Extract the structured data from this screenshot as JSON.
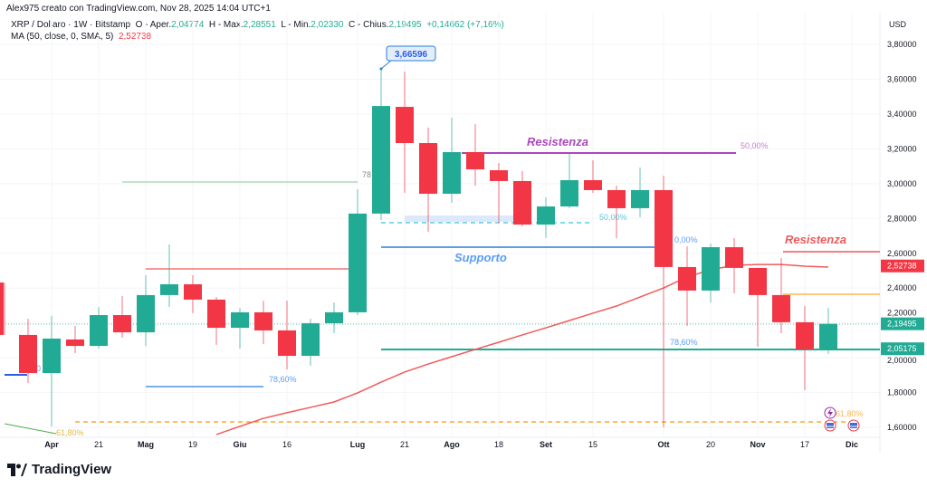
{
  "header": {
    "author_line": "Alex975 creato con TradingView.com, Nov 28, 2025 14:04 UTC+1",
    "symbol": "XRP / Dollaro · 1W · Bitstamp",
    "open_label": "O - Aper.",
    "open": "2,04774",
    "high_label": "H - Max.",
    "high": "2,28551",
    "low_label": "L - Min.",
    "low": "2,02330",
    "close_label": "C - Chius.",
    "close": "2,19495",
    "change": "+0,14662 (+7,16%)",
    "ma_label": "MA (50, close, 0, SMA, 5)",
    "ma_value": "2,52738"
  },
  "price_axis": {
    "currency": "USD",
    "ticks": [
      "3,80000",
      "3,60000",
      "3,40000",
      "3,20000",
      "3,00000",
      "2,80000",
      "2,60000",
      "2,40000",
      "2,20000",
      "2,00000",
      "1,80000",
      "1,60000"
    ],
    "tags": [
      {
        "text": "2,52738",
        "price": 2.52738,
        "color": "#f23645"
      },
      {
        "text": "2,19495",
        "price": 2.19495,
        "color": "#22ab94"
      },
      {
        "text": "2,05175",
        "price": 2.05175,
        "color": "#22ab94"
      }
    ]
  },
  "time_axis": {
    "labels": [
      {
        "t": "Apr",
        "i": 2
      },
      {
        "t": "21",
        "i": 4
      },
      {
        "t": "Mag",
        "i": 6
      },
      {
        "t": "19",
        "i": 8
      },
      {
        "t": "Giu",
        "i": 10
      },
      {
        "t": "16",
        "i": 12
      },
      {
        "t": "Lug",
        "i": 15
      },
      {
        "t": "21",
        "i": 17
      },
      {
        "t": "Ago",
        "i": 19
      },
      {
        "t": "18",
        "i": 21
      },
      {
        "t": "Set",
        "i": 23
      },
      {
        "t": "15",
        "i": 25
      },
      {
        "t": "Ott",
        "i": 28
      },
      {
        "t": "20",
        "i": 30
      },
      {
        "t": "Nov",
        "i": 32
      },
      {
        "t": "17",
        "i": 34
      },
      {
        "t": "Dic",
        "i": 36
      }
    ]
  },
  "colors": {
    "up": "#22ab94",
    "down": "#f23645",
    "ma": "#f05a5a",
    "purple": "#ab47bc",
    "blue": "#5b9cf6",
    "orange": "#ff9800"
  },
  "chart_data": {
    "type": "candlestick",
    "ylim": [
      1.56,
      3.88
    ],
    "candles": [
      [
        2.432,
        2.432,
        2.131,
        2.131
      ],
      [
        2.131,
        2.224,
        1.855,
        1.912
      ],
      [
        1.912,
        2.24,
        1.606,
        2.11
      ],
      [
        2.105,
        2.183,
        2.027,
        2.068
      ],
      [
        2.068,
        2.292,
        2.053,
        2.245
      ],
      [
        2.245,
        2.354,
        2.115,
        2.146
      ],
      [
        2.146,
        2.474,
        2.068,
        2.36
      ],
      [
        2.36,
        2.651,
        2.292,
        2.422
      ],
      [
        2.422,
        2.474,
        2.256,
        2.334
      ],
      [
        2.334,
        2.349,
        2.074,
        2.172
      ],
      [
        2.172,
        2.287,
        2.053,
        2.261
      ],
      [
        2.261,
        2.328,
        2.079,
        2.157
      ],
      [
        2.157,
        2.328,
        1.933,
        2.011
      ],
      [
        2.011,
        2.224,
        1.954,
        2.198
      ],
      [
        2.198,
        2.318,
        2.141,
        2.261
      ],
      [
        2.261,
        2.968,
        2.245,
        2.828
      ],
      [
        2.828,
        3.666,
        2.791,
        3.446
      ],
      [
        3.441,
        3.644,
        2.947,
        3.233
      ],
      [
        3.233,
        3.322,
        2.724,
        2.942
      ],
      [
        2.942,
        3.379,
        2.89,
        3.181
      ],
      [
        3.181,
        3.342,
        2.989,
        3.082
      ],
      [
        3.077,
        3.119,
        2.776,
        3.015
      ],
      [
        3.015,
        3.072,
        2.755,
        2.765
      ],
      [
        2.765,
        2.921,
        2.687,
        2.869
      ],
      [
        2.869,
        3.171,
        2.859,
        3.02
      ],
      [
        3.02,
        3.134,
        2.947,
        2.963
      ],
      [
        2.963,
        2.989,
        2.687,
        2.859
      ],
      [
        2.859,
        3.093,
        2.807,
        2.963
      ],
      [
        2.963,
        3.046,
        1.6,
        2.521
      ],
      [
        2.521,
        2.64,
        2.183,
        2.386
      ],
      [
        2.386,
        2.656,
        2.318,
        2.635
      ],
      [
        2.635,
        2.687,
        2.37,
        2.516
      ],
      [
        2.516,
        2.516,
        2.063,
        2.36
      ],
      [
        2.36,
        2.573,
        2.141,
        2.204
      ],
      [
        2.204,
        2.297,
        1.814,
        2.048
      ],
      [
        2.048,
        2.286,
        2.023,
        2.195
      ]
    ],
    "ma_start_index": 9,
    "ma": [
      1.559,
      1.606,
      1.652,
      1.684,
      1.715,
      1.746,
      1.798,
      1.86,
      1.918,
      1.964,
      2.006,
      2.048,
      2.089,
      2.131,
      2.172,
      2.214,
      2.256,
      2.297,
      2.349,
      2.401,
      2.464,
      2.505,
      2.531,
      2.536,
      2.536,
      2.526,
      2.521
    ]
  },
  "annotations": {
    "high_callout": "3,66596",
    "resistance_top": "Resistenza",
    "resistance_right": "Resistenza",
    "support": "Supporto",
    "fib_50_a": "50,00%",
    "fib_50_b": "50,00%",
    "fib_786_a": "78,60%",
    "fib_786_b": "78,60%",
    "fib_78_partial": "78",
    "fib_0": "0,00%",
    "fib_0_partial": "0",
    "fib_618_a": "61,80%",
    "fib_618_b": "61,80%"
  },
  "footer": {
    "brand": "TradingView"
  }
}
